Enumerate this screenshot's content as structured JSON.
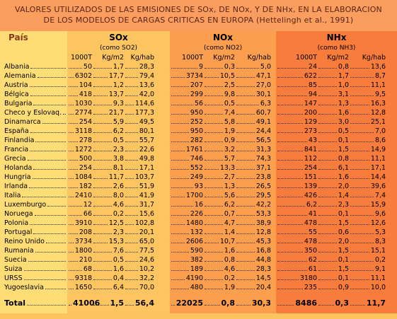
{
  "title": [
    "VALORES UTILIZADOS DE LAS EMISIONES DE SOx, DE NOx, Y DE NHx, EN LA ELABORACION",
    "DE LOS MODELOS DE CARGAS CRITICAS EN EUROPA (Hettelingh et al., 1991)"
  ],
  "header": {
    "country": "País",
    "groups": [
      {
        "name": "SOx",
        "sub": "(como SO2)",
        "units": [
          "1000T",
          "Kg/m2",
          "Kg/hab"
        ]
      },
      {
        "name": "NOx",
        "sub": "(como NO2)",
        "units": [
          "1000T",
          "Kg/m2",
          "Kg/hab"
        ]
      },
      {
        "name": "NHx",
        "sub": "(como NH3)",
        "units": [
          "1000T",
          "Kg/m2",
          "Kg/hab"
        ]
      }
    ]
  },
  "rows": [
    [
      "Albania",
      "50",
      "1,7",
      "28,3",
      "9",
      "0,3",
      "5,0",
      "24",
      "0,8",
      "13,6"
    ],
    [
      "Alemania",
      "6302",
      "17,7",
      "79,4",
      "3734",
      "10,5",
      "47,1",
      "622",
      "1,7",
      "8,7"
    ],
    [
      "Austria",
      "104",
      "1,2",
      "13,6",
      "207",
      "2,5",
      "27,0",
      "85",
      "1,0",
      "11,1"
    ],
    [
      "Bélgica",
      "418",
      "13,7",
      "42,0",
      "299",
      "9,8",
      "30,1",
      "94",
      "3,1",
      "9,5"
    ],
    [
      "Bulgaria",
      "1030",
      "9,3",
      "114,6",
      "56",
      "0,5",
      "6,3",
      "147",
      "1,3",
      "16,3"
    ],
    [
      "Checo y Eslovaq.",
      "2774",
      "21,7",
      "177,3",
      "950",
      "7,4",
      "60,7",
      "200",
      "1,6",
      "12,8"
    ],
    [
      "Dinamarca",
      "254",
      "5,9",
      "49,5",
      "252",
      "5,8",
      "49,1",
      "129",
      "3,0",
      "25,1"
    ],
    [
      "España",
      "3118",
      "6,2",
      "80,1",
      "950",
      "1,9",
      "24,4",
      "273",
      "0,5",
      "7,0"
    ],
    [
      "Finlandia",
      "278",
      "0,5",
      "55,7",
      "282",
      "0,9",
      "56,5",
      "43",
      "0,1",
      "8,6"
    ],
    [
      "Francia",
      "1272",
      "2,3",
      "22,6",
      "1761",
      "3,2",
      "31,3",
      "841",
      "1,5",
      "14,9"
    ],
    [
      "Grecia",
      "500",
      "3,8",
      "49,8",
      "746",
      "5,7",
      "74,3",
      "112",
      "0,8",
      "11,1"
    ],
    [
      "Holanda",
      "254",
      "8,1",
      "17,1",
      "552",
      "13,3",
      "37,1",
      "254",
      "6,1",
      "17,1"
    ],
    [
      "Hungria",
      "1084",
      "11,7",
      "103,7",
      "249",
      "2,7",
      "23,8",
      "151",
      "1,6",
      "14,4"
    ],
    [
      "Irlanda",
      "182",
      "2,6",
      "51,9",
      "93",
      "1,3",
      "26,5",
      "139",
      "2,0",
      "39,6"
    ],
    [
      "Italia",
      "2410",
      "8,0",
      "41,9",
      "1700",
      "5,6",
      "29,5",
      "426",
      "1,4",
      "7,4"
    ],
    [
      "Luxemburgo",
      "12",
      "4,6",
      "31,7",
      "16",
      "6,2",
      "42,2",
      "6,2",
      "2,3",
      "15,9"
    ],
    [
      "Noruega",
      "66",
      "0,2",
      "15,6",
      "226",
      "0,7",
      "53,3",
      "41",
      "0,1",
      "9,6"
    ],
    [
      "Polonia",
      "3910",
      "12,5",
      "102,8",
      "1480",
      "4,7",
      "38,9",
      "478",
      "1,5",
      "12,6"
    ],
    [
      "Portugal",
      "208",
      "2,3",
      "20,1",
      "132",
      "1,4",
      "12,8",
      "55",
      "0,6",
      "5,3"
    ],
    [
      "Reino Unido",
      "3734",
      "15,3",
      "65,0",
      "2606",
      "10,7",
      "45,3",
      "478",
      "2,0",
      "8,3"
    ],
    [
      "Rumania",
      "1800",
      "7,6",
      "77,5",
      "590",
      "1,6",
      "16,8",
      "350",
      "1,5",
      "15,1"
    ],
    [
      "Suecia",
      "210",
      "0,5",
      "24,6",
      "382",
      "0,8",
      "44,8",
      "62",
      "0,1",
      "0,2"
    ],
    [
      "Suiza",
      "68",
      "1,6",
      "10,2",
      "189",
      "4,6",
      "28,3",
      "61",
      "1,5",
      "9,1"
    ],
    [
      "URSS",
      "9318",
      "0,4",
      "32,2",
      "4190",
      "0,2",
      "14,5",
      "3180",
      "0,1",
      "11,1"
    ],
    [
      "Yugoeslavia",
      "1650",
      "6,4",
      "70,0",
      "480",
      "1,9",
      "20,4",
      "235",
      "0,9",
      "10,0"
    ]
  ],
  "total": [
    "Total",
    "41006",
    "1,5",
    "56,4",
    "22025",
    "0,8",
    "30,3",
    "8486",
    "0,3",
    "11,7"
  ]
}
